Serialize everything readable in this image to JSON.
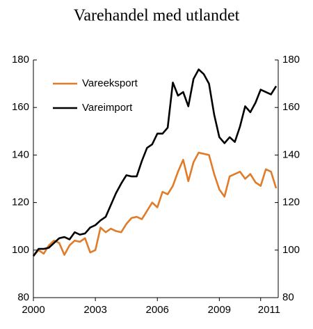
{
  "chart_data": {
    "type": "line",
    "title": "Varehandel med utlandet",
    "x": [
      2000,
      2000.25,
      2000.5,
      2000.75,
      2001,
      2001.25,
      2001.5,
      2001.75,
      2002,
      2002.25,
      2002.5,
      2002.75,
      2003,
      2003.25,
      2003.5,
      2003.75,
      2004,
      2004.25,
      2004.5,
      2004.75,
      2005,
      2005.25,
      2005.5,
      2005.75,
      2006,
      2006.25,
      2006.5,
      2006.75,
      2007,
      2007.25,
      2007.5,
      2007.75,
      2008,
      2008.25,
      2008.5,
      2008.75,
      2009,
      2009.25,
      2009.5,
      2009.75,
      2010,
      2010.25,
      2010.5,
      2010.75,
      2011,
      2011.25,
      2011.5,
      2011.75
    ],
    "series": [
      {
        "name": "Vareeksport",
        "color": "#e07b2a",
        "values": [
          97.5,
          100,
          98.5,
          102,
          104,
          103,
          98,
          102,
          104,
          103.5,
          105,
          99,
          100,
          109.5,
          107.5,
          109,
          108,
          107.5,
          111,
          113.5,
          114,
          113,
          116.5,
          120,
          118,
          124.5,
          123.5,
          127,
          133,
          138,
          129,
          137,
          141,
          140.5,
          140,
          132,
          125.5,
          122.5,
          131,
          132,
          133,
          130,
          132,
          128.5,
          127,
          134,
          133,
          126
        ]
      },
      {
        "name": "Vareimport",
        "color": "#000000",
        "values": [
          97.5,
          100.5,
          100.5,
          101,
          103,
          105,
          105.5,
          104.5,
          107.5,
          106.5,
          107,
          109.5,
          110.5,
          112.5,
          114,
          119,
          124,
          128,
          131.5,
          131,
          131,
          137.5,
          143,
          144.5,
          149,
          149,
          151.5,
          170.5,
          165,
          166.5,
          160.5,
          172,
          176,
          174,
          170,
          157,
          147.5,
          145,
          147.5,
          145.5,
          152,
          160.5,
          158,
          162,
          167.5,
          166.5,
          165.5,
          169
        ]
      }
    ],
    "xlim": [
      2000,
      2011.85
    ],
    "xticks": [
      2000,
      2003,
      2006,
      2009,
      2011
    ],
    "ylim": [
      80,
      180
    ],
    "yticks": [
      80,
      100,
      120,
      140,
      160,
      180
    ],
    "y2lim": [
      80,
      180
    ],
    "y2ticks": [
      80,
      100,
      120,
      140,
      160,
      180
    ],
    "legend": "upper left"
  }
}
